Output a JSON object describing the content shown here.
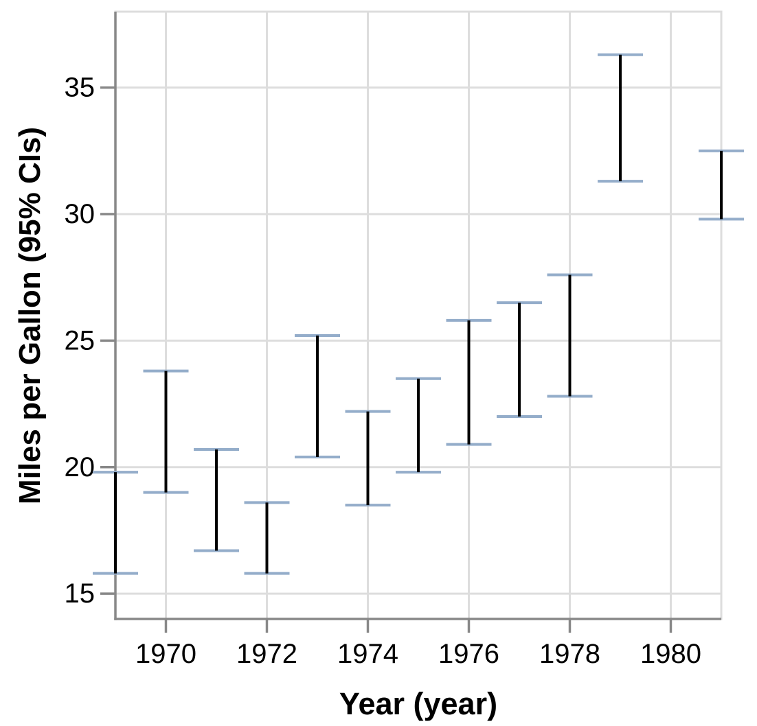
{
  "page": {
    "background": "#ffffff"
  },
  "chart_data": {
    "type": "errorbar",
    "title": "",
    "xlabel": "Year (year)",
    "ylabel": "Miles per Gallon (95% CIs)",
    "xlim": [
      1969,
      1981
    ],
    "ylim": [
      14,
      38
    ],
    "grid": true,
    "legend": false,
    "x_tick_values": [
      1970,
      1972,
      1974,
      1976,
      1978,
      1980
    ],
    "x_tick_labels": [
      "1970",
      "1972",
      "1974",
      "1976",
      "1978",
      "1980"
    ],
    "y_tick_values": [
      15,
      20,
      25,
      30,
      35
    ],
    "y_tick_labels": [
      "15",
      "20",
      "25",
      "30",
      "35"
    ],
    "points": [
      {
        "year": 1969,
        "ci_lower": 15.8,
        "ci_upper": 19.8
      },
      {
        "year": 1970,
        "ci_lower": 19.0,
        "ci_upper": 23.8
      },
      {
        "year": 1971,
        "ci_lower": 16.7,
        "ci_upper": 20.7
      },
      {
        "year": 1972,
        "ci_lower": 15.8,
        "ci_upper": 18.6
      },
      {
        "year": 1973,
        "ci_lower": 20.4,
        "ci_upper": 25.2
      },
      {
        "year": 1974,
        "ci_lower": 18.5,
        "ci_upper": 22.2
      },
      {
        "year": 1975,
        "ci_lower": 19.8,
        "ci_upper": 23.5
      },
      {
        "year": 1976,
        "ci_lower": 20.9,
        "ci_upper": 25.8
      },
      {
        "year": 1977,
        "ci_lower": 22.0,
        "ci_upper": 26.5
      },
      {
        "year": 1978,
        "ci_lower": 22.8,
        "ci_upper": 27.6
      },
      {
        "year": 1979,
        "ci_lower": 31.3,
        "ci_upper": 36.3
      },
      {
        "year": 1981,
        "ci_lower": 29.8,
        "ci_upper": 32.5
      }
    ],
    "colors": {
      "error_rule": "#000000",
      "error_cap": "#94adca",
      "grid": "#dddddd",
      "plot_border": "#dddddd",
      "axis_domain": "#888888",
      "tick": "#888888",
      "label_text": "#000000",
      "background": "#ffffff"
    }
  }
}
